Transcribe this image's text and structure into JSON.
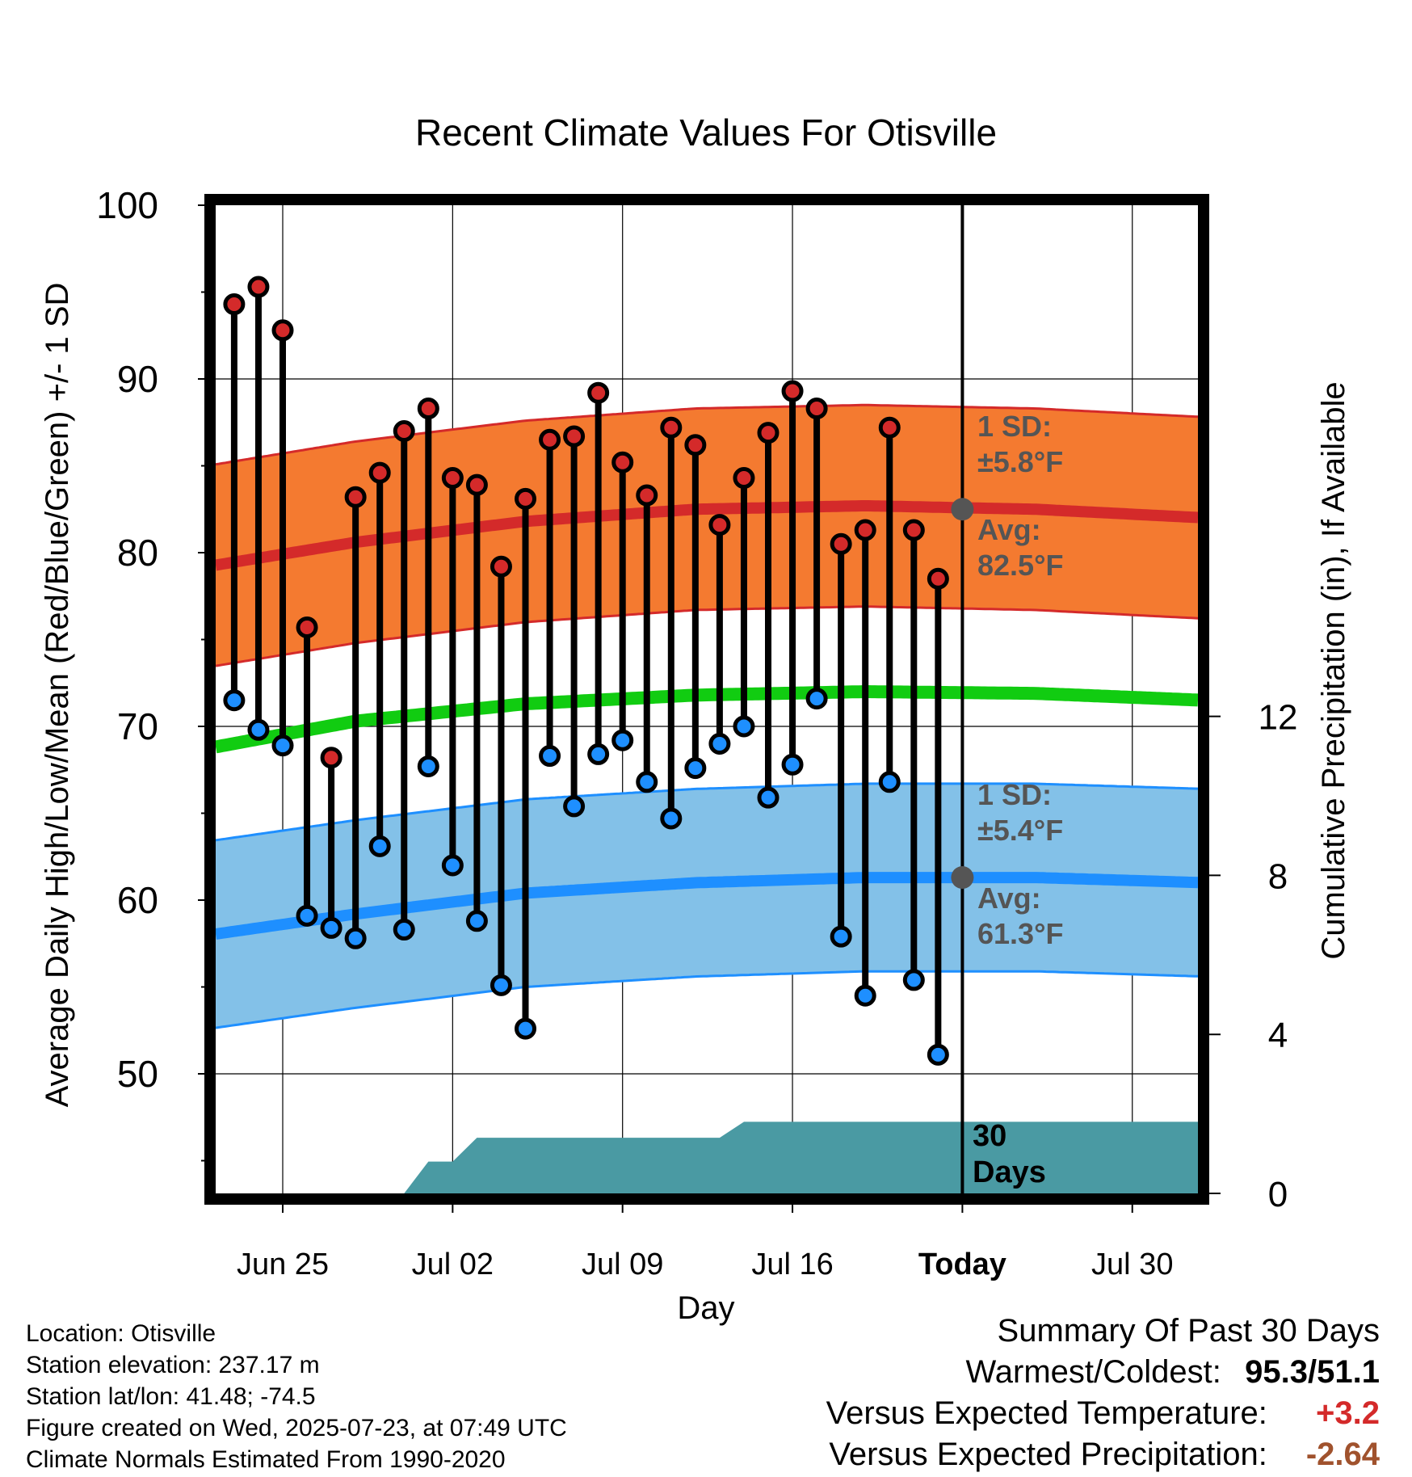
{
  "chart_data": {
    "type": "line",
    "title": "Recent Climate Values For Otisville",
    "xlabel": "Day",
    "ylabel": "Average Daily High/Low/Mean (Red/Blue/Green) +/- 1 SD",
    "y2label": "Cumulative Precipitation (in), If Available",
    "ylim": [
      43,
      100
    ],
    "y_ticks": [
      50,
      60,
      70,
      80,
      90,
      100
    ],
    "y2lim": [
      0,
      30
    ],
    "y2_ticks": [
      0,
      4,
      8,
      12
    ],
    "x_ticks": [
      {
        "date": "2025-06-25",
        "label": "Jun 25"
      },
      {
        "date": "2025-07-02",
        "label": "Jul 02"
      },
      {
        "date": "2025-07-09",
        "label": "Jul 09"
      },
      {
        "date": "2025-07-16",
        "label": "Jul 16"
      },
      {
        "date": "2025-07-23",
        "label": "Today"
      },
      {
        "date": "2025-07-30",
        "label": "Jul 30"
      }
    ],
    "xlim": [
      "2025-06-21",
      "2025-08-02"
    ],
    "today": "2025-07-23",
    "grid": true,
    "colors": {
      "high": "#d42a2a",
      "low": "#1e8fff",
      "mean": "#11cc11",
      "high_band": "#f47a30",
      "low_band": "#83c1e8",
      "precip": "#4a9aa3",
      "marker_edge": "#000000",
      "annotation": "#555555"
    },
    "observed": {
      "dates": [
        "2025-06-23",
        "2025-06-24",
        "2025-06-25",
        "2025-06-26",
        "2025-06-27",
        "2025-06-28",
        "2025-06-29",
        "2025-06-30",
        "2025-07-01",
        "2025-07-02",
        "2025-07-03",
        "2025-07-04",
        "2025-07-05",
        "2025-07-06",
        "2025-07-07",
        "2025-07-08",
        "2025-07-09",
        "2025-07-10",
        "2025-07-11",
        "2025-07-12",
        "2025-07-13",
        "2025-07-14",
        "2025-07-15",
        "2025-07-16",
        "2025-07-17",
        "2025-07-18",
        "2025-07-19",
        "2025-07-20",
        "2025-07-21",
        "2025-07-22"
      ],
      "highs": [
        94.3,
        95.3,
        92.8,
        75.7,
        68.2,
        83.2,
        84.6,
        87.0,
        88.3,
        84.3,
        83.9,
        79.2,
        83.1,
        86.5,
        86.7,
        89.2,
        85.2,
        83.3,
        87.2,
        86.2,
        81.6,
        84.3,
        86.9,
        89.3,
        88.3,
        80.5,
        81.3,
        87.2,
        81.3,
        78.5
      ],
      "lows": [
        71.5,
        69.8,
        68.9,
        59.1,
        58.4,
        57.8,
        63.1,
        58.3,
        67.7,
        62.0,
        58.8,
        55.1,
        52.6,
        68.3,
        65.4,
        68.4,
        69.2,
        66.8,
        64.7,
        67.6,
        69.0,
        70.0,
        65.9,
        67.8,
        71.6,
        57.9,
        54.5,
        66.8,
        55.4,
        51.1
      ]
    },
    "normals": {
      "dates": [
        "2025-06-21",
        "2025-06-28",
        "2025-07-05",
        "2025-07-12",
        "2025-07-19",
        "2025-07-26",
        "2025-08-02"
      ],
      "high_avg": [
        79.0,
        80.6,
        81.8,
        82.5,
        82.7,
        82.5,
        82.0
      ],
      "high_sd": 5.8,
      "low_avg": [
        57.8,
        59.2,
        60.4,
        61.0,
        61.3,
        61.3,
        61.0
      ],
      "low_sd": 5.4,
      "mean_avg": [
        68.5,
        70.3,
        71.3,
        71.8,
        72.0,
        71.9,
        71.5
      ]
    },
    "precip_cumulative": {
      "dates": [
        "2025-06-30",
        "2025-07-01",
        "2025-07-02",
        "2025-07-03",
        "2025-07-13",
        "2025-07-14",
        "2025-08-02"
      ],
      "values": [
        0,
        0.8,
        0.8,
        1.4,
        1.4,
        1.8,
        1.8
      ]
    },
    "annotations": {
      "high_sd_label": "1 SD:",
      "high_sd_value": "±5.8°F",
      "high_avg_label": "Avg:",
      "high_avg_value": "82.5°F",
      "low_sd_label": "1 SD:",
      "low_sd_value": "±5.4°F",
      "low_avg_label": "Avg:",
      "low_avg_value": "61.3°F",
      "high_avg_today": 82.5,
      "low_avg_today": 61.3,
      "window_count": "30",
      "window_unit": "Days"
    }
  },
  "footer": {
    "location": "Location: Otisville",
    "elevation": "Station elevation: 237.17 m",
    "latlon": "Station lat/lon: 41.48; -74.5",
    "created": "Figure created on Wed, 2025-07-23, at 07:49 UTC",
    "normals": "Climate Normals Estimated From 1990-2020"
  },
  "summary": {
    "title": "Summary Of Past 30 Days",
    "warm_cold_label": "Warmest/Coldest:",
    "warm_cold_value": "95.3/51.1",
    "temp_label": "Versus Expected Temperature:",
    "temp_value": "+3.2",
    "temp_color": "#d42a2a",
    "precip_label": "Versus Expected Precipitation:",
    "precip_value": "-2.64",
    "precip_color": "#a0522d"
  }
}
